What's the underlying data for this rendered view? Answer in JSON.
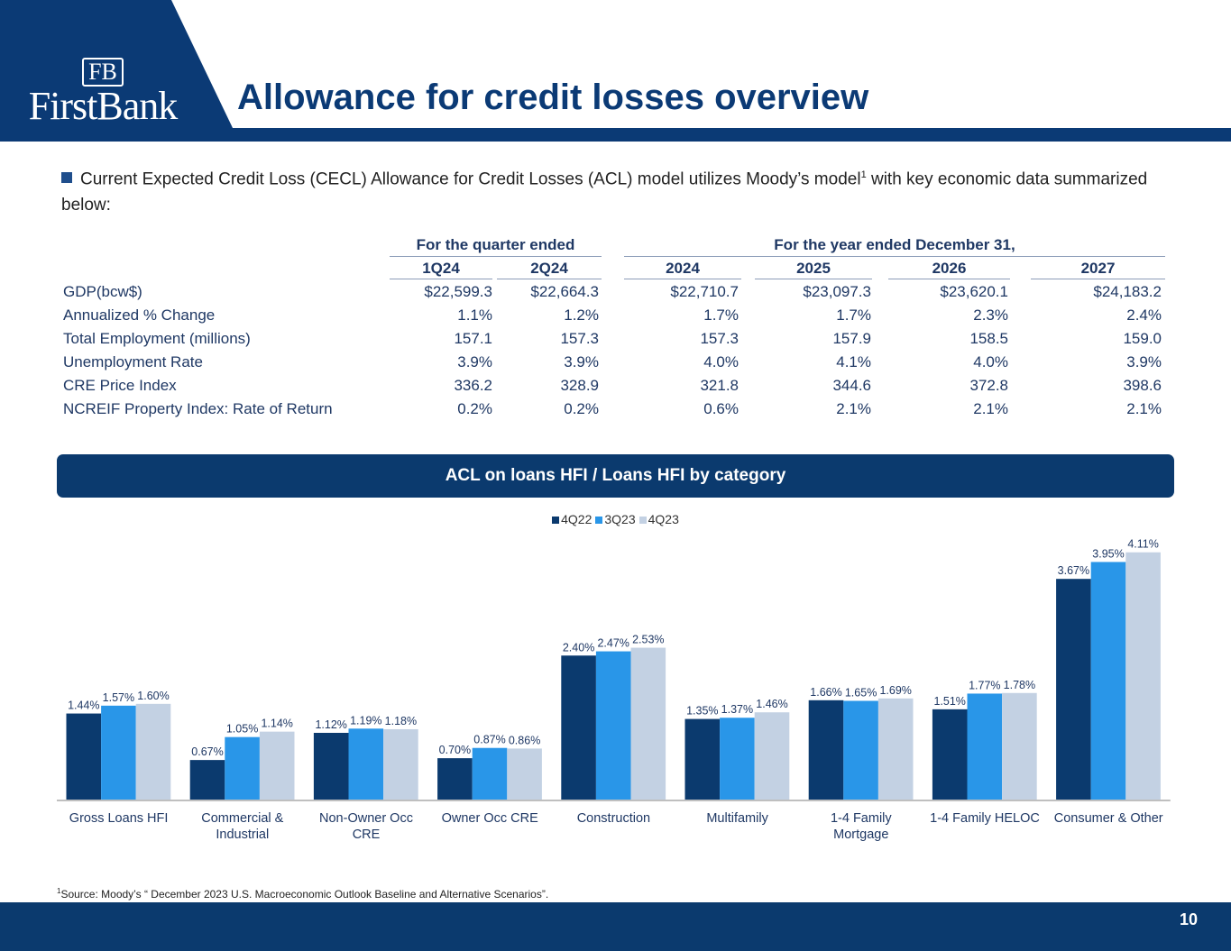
{
  "header": {
    "logo_text": "FirstBank",
    "logo_monogram": "FB",
    "title": "Allowance for credit losses overview"
  },
  "bullet": {
    "text": "Current Expected Credit Loss (CECL) Allowance for Credit Losses (ACL) model utilizes Moody’s model",
    "footnote_ref": "1",
    "text_after": " with key economic data summarized below:"
  },
  "table": {
    "group_quarter": "For the quarter ended",
    "group_year": "For the year ended December 31,",
    "columns": [
      "1Q24",
      "2Q24",
      "2024",
      "2025",
      "2026",
      "2027"
    ],
    "rows": [
      {
        "label": "GDP(bcw$)",
        "values": [
          "$22,599.3",
          "$22,664.3",
          "$22,710.7",
          "$23,097.3",
          "$23,620.1",
          "$24,183.2"
        ]
      },
      {
        "label": "Annualized % Change",
        "values": [
          "1.1%",
          "1.2%",
          "1.7%",
          "1.7%",
          "2.3%",
          "2.4%"
        ]
      },
      {
        "label": "Total Employment (millions)",
        "values": [
          "157.1",
          "157.3",
          "157.3",
          "157.9",
          "158.5",
          "159.0"
        ]
      },
      {
        "label": "Unemployment Rate",
        "values": [
          "3.9%",
          "3.9%",
          "4.0%",
          "4.1%",
          "4.0%",
          "3.9%"
        ]
      },
      {
        "label": "CRE Price Index",
        "values": [
          "336.2",
          "328.9",
          "321.8",
          "344.6",
          "372.8",
          "398.6"
        ]
      },
      {
        "label": "NCREIF Property Index: Rate of Return",
        "values": [
          "0.2%",
          "0.2%",
          "0.6%",
          "2.1%",
          "2.1%",
          "2.1%"
        ]
      }
    ]
  },
  "banner": "ACL on loans HFI / Loans HFI by category",
  "chart_data": {
    "type": "bar",
    "title": "ACL on loans HFI / Loans HFI by category",
    "categories": [
      "Gross Loans HFI",
      "Commercial & Industrial",
      "Non-Owner Occ CRE",
      "Owner Occ CRE",
      "Construction",
      "Multifamily",
      "1-4 Family Mortgage",
      "1-4 Family HELOC",
      "Consumer & Other"
    ],
    "series": [
      {
        "name": "4Q22",
        "color": "#0b3a6e",
        "values": [
          1.44,
          0.67,
          1.12,
          0.7,
          2.4,
          1.35,
          1.66,
          1.51,
          3.67
        ],
        "labels": [
          "1.44%",
          "0.67%",
          "1.12%",
          "0.70%",
          "2.40%",
          "1.35%",
          "1.66%",
          "1.51%",
          "3.67%"
        ]
      },
      {
        "name": "3Q23",
        "color": "#2996e8",
        "values": [
          1.57,
          1.05,
          1.19,
          0.87,
          2.47,
          1.37,
          1.65,
          1.77,
          3.95
        ],
        "labels": [
          "1.57%",
          "1.05%",
          "1.19%",
          "0.87%",
          "2.47%",
          "1.37%",
          "1.65%",
          "1.77%",
          "3.95%"
        ]
      },
      {
        "name": "4Q23",
        "color": "#c3d1e3",
        "values": [
          1.6,
          1.14,
          1.18,
          0.86,
          2.53,
          1.46,
          1.69,
          1.78,
          4.11
        ],
        "labels": [
          "1.60%",
          "1.14%",
          "1.18%",
          "0.86%",
          "2.53%",
          "1.46%",
          "1.69%",
          "1.78%",
          "4.11%"
        ]
      }
    ],
    "ylim": [
      0,
      4.3
    ],
    "grid": false,
    "legend": "top-center",
    "unit": "%"
  },
  "footnote": {
    "ref": "1",
    "text": "Source: Moody’s “ December 2023 U.S. Macroeconomic Outlook Baseline and Alternative Scenarios”."
  },
  "page_number": "10"
}
